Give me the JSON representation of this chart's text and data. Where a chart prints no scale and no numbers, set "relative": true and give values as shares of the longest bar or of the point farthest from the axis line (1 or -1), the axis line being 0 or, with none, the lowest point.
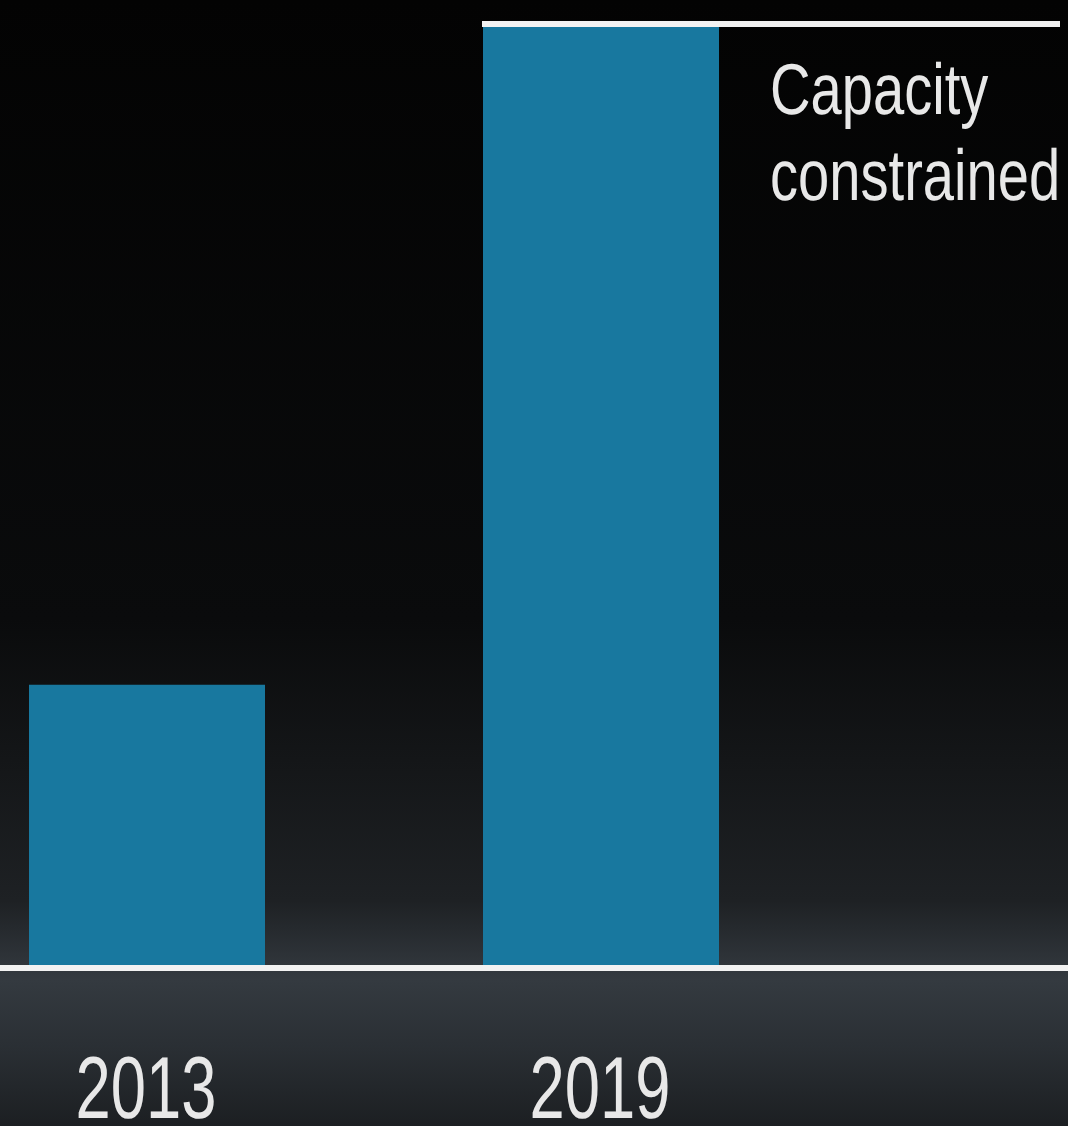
{
  "chart_data": {
    "type": "bar",
    "categories": [
      "2013",
      "2019"
    ],
    "values": [
      0.3,
      1
    ],
    "color": "#18789f",
    "relative": true,
    "annotations": [
      {
        "text": "Capacity constrained",
        "x": "2019",
        "y": 1
      }
    ]
  }
}
